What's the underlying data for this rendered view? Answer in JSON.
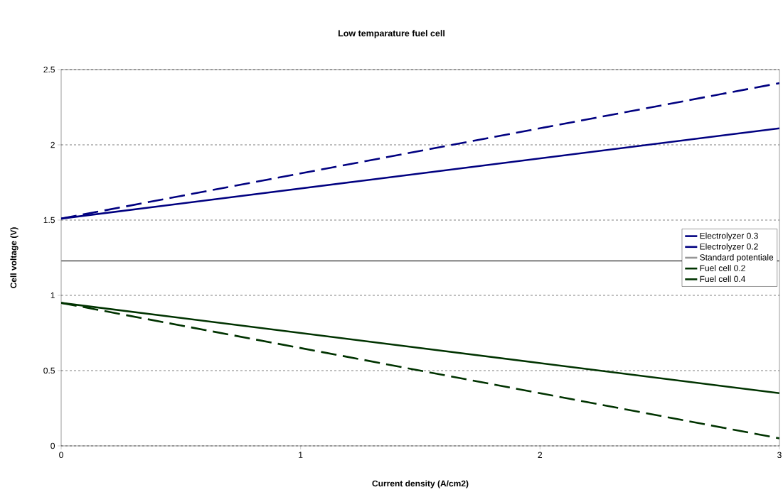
{
  "chart_data": {
    "type": "line",
    "title": "Low temparature fuel cell",
    "xlabel": "Current density (A/cm2)",
    "ylabel": "Cell voltage (V)",
    "x": [
      0,
      3
    ],
    "series": [
      {
        "name": "Electrolyzer 0.3",
        "color": "#000080",
        "values": [
          1.51,
          2.41
        ],
        "line_style": "dashed"
      },
      {
        "name": "Electrolyzer 0.2",
        "color": "#000080",
        "values": [
          1.51,
          2.11
        ],
        "line_style": "solid"
      },
      {
        "name": "Standard potentiale",
        "color": "#969696",
        "values": [
          1.23,
          1.23
        ],
        "line_style": "solid"
      },
      {
        "name": "Fuel cell 0.2",
        "color": "#003300",
        "values": [
          0.95,
          0.35
        ],
        "line_style": "solid"
      },
      {
        "name": "Fuel cell 0.4",
        "color": "#003300",
        "values": [
          0.95,
          0.05
        ],
        "line_style": "dashed"
      }
    ],
    "xlim": [
      0,
      3
    ],
    "xticks": [
      0,
      1,
      2,
      3
    ],
    "ylim": [
      0,
      2.5
    ],
    "yticks": [
      0,
      0.5,
      1,
      1.5,
      2,
      2.5
    ],
    "grid": "y",
    "legend": "right",
    "marker": "none"
  }
}
